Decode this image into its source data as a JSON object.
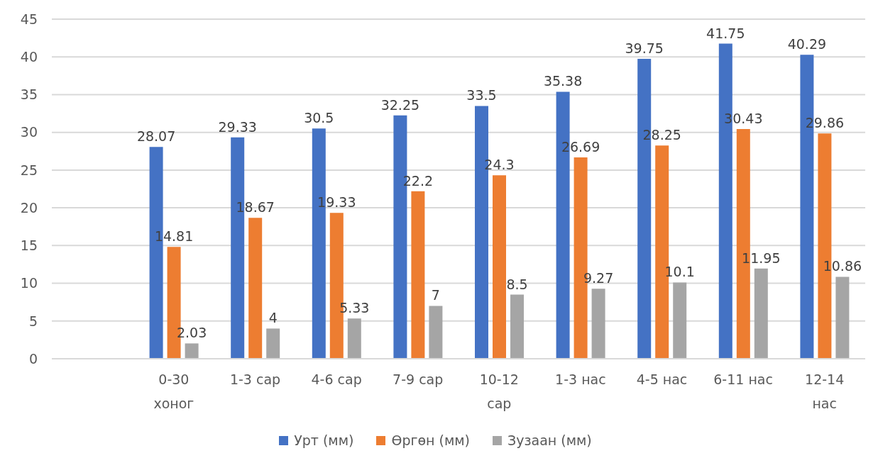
{
  "chart_data": {
    "type": "bar",
    "categories": [
      null,
      "0-30 хоног",
      "1-3 сар",
      "4-6 сар",
      "7-9 сар",
      "10-12 сар",
      "1-3 нас",
      "4-5 нас",
      "6-11 нас",
      "12-14 нас"
    ],
    "series": [
      {
        "name": "Урт (мм)",
        "color": "#4472c4",
        "values": [
          null,
          28.07,
          29.33,
          30.5,
          32.25,
          33.5,
          35.38,
          39.75,
          41.75,
          40.29
        ]
      },
      {
        "name": "Өргөн (мм)",
        "color": "#ed7d31",
        "values": [
          null,
          14.81,
          18.67,
          19.33,
          22.2,
          24.3,
          26.69,
          28.25,
          30.43,
          29.86
        ]
      },
      {
        "name": "Зузаан (мм)",
        "color": "#a5a5a5",
        "values": [
          null,
          2.03,
          4,
          5.33,
          7,
          8.5,
          9.27,
          10.1,
          11.95,
          10.86
        ]
      }
    ],
    "ylim": [
      0,
      45
    ],
    "yticks": [
      0,
      5,
      10,
      15,
      20,
      25,
      30,
      35,
      40,
      45
    ],
    "grid": "y",
    "legend": "bottom",
    "data_labels": true
  }
}
